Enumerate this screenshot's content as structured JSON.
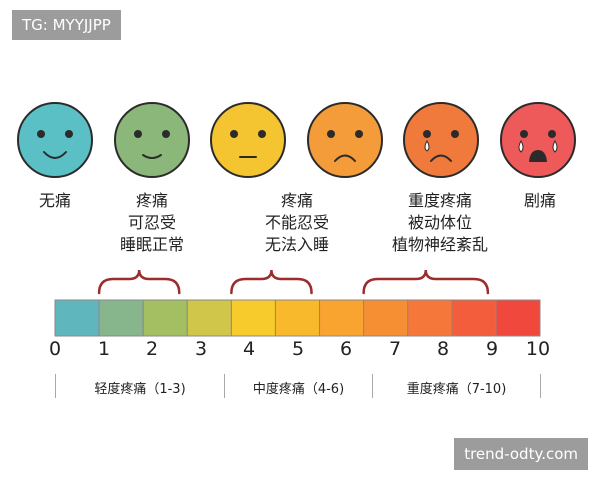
{
  "tag": "TG: MYYJJPP",
  "watermark": "trend-odty.com",
  "faces": [
    {
      "lines": [
        "无痛"
      ],
      "color": "#5bbfc6",
      "expression": "happy",
      "eyes": "dots"
    },
    {
      "lines": [
        "疼痛",
        "可忍受",
        "睡眠正常"
      ],
      "color": "#8cb77a",
      "expression": "slight-smile",
      "eyes": "dots"
    },
    {
      "lines": [
        "疼痛",
        "不能忍受",
        "无法入睡"
      ],
      "color": "#f5c531",
      "expression": "neutral",
      "eyes": "dots"
    },
    {
      "lines": [],
      "color": "#f49b3a",
      "expression": "frown",
      "eyes": "dots"
    },
    {
      "lines": [
        "重度疼痛",
        "被动体位",
        "植物神经紊乱"
      ],
      "color": "#ef7a3c",
      "expression": "frown-tear",
      "eyes": "dots"
    },
    {
      "lines": [
        "剧痛"
      ],
      "color": "#ee5a5a",
      "expression": "crying",
      "eyes": "dots"
    }
  ],
  "scale": {
    "ticks": [
      "0",
      "1",
      "2",
      "3",
      "4",
      "5",
      "6",
      "7",
      "8",
      "9",
      "10"
    ],
    "segment_colors": [
      "#5fb6bd",
      "#87b58c",
      "#a3bf62",
      "#cfc64a",
      "#f7cb2c",
      "#f9b92c",
      "#f9a431",
      "#f68f34",
      "#f5773a",
      "#f45d3b",
      "#f0483c"
    ]
  },
  "ranges": [
    {
      "label": "轻度疼痛（1-3)",
      "from": 1,
      "to": 3
    },
    {
      "label": "中度疼痛（4-6)",
      "from": 4,
      "to": 6
    },
    {
      "label": "重度疼痛（7-10)",
      "from": 7,
      "to": 10
    }
  ],
  "colors": {
    "brace": "#9b2d2d",
    "bar_border": "#8a8a8a",
    "face_stroke": "#2b2b2b"
  }
}
